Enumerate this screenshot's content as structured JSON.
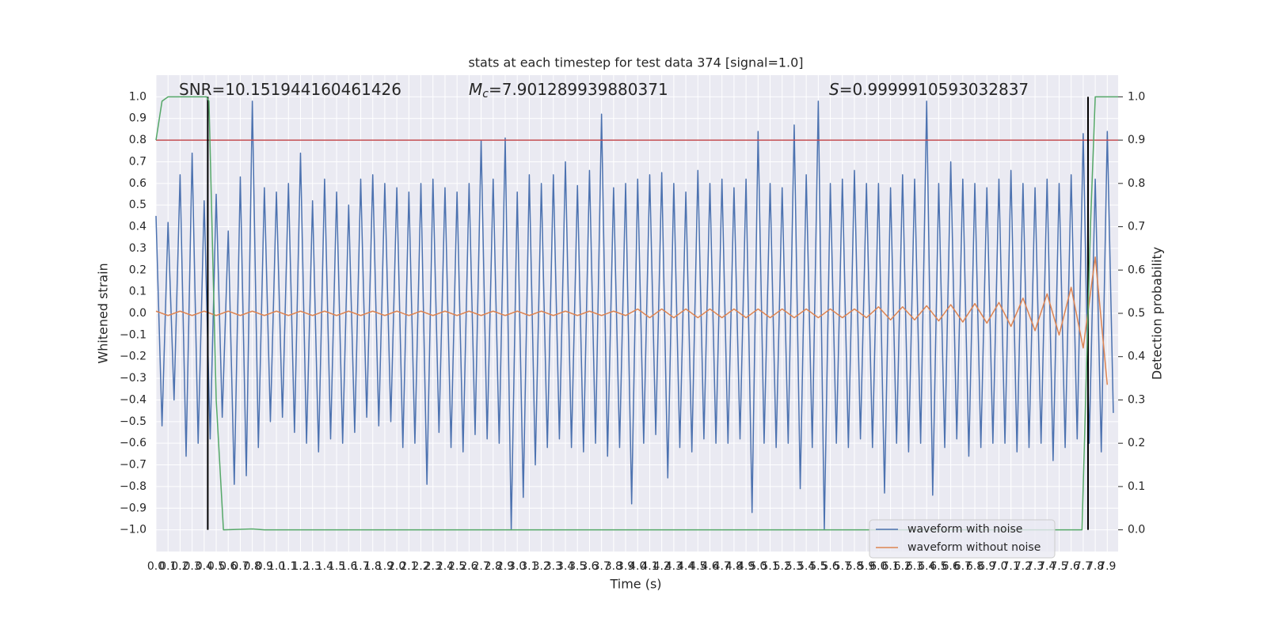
{
  "chart_data": {
    "type": "line",
    "title": "stats at each timestep for test data 374 [signal=1.0]",
    "x_label": "Time (s)",
    "y_label": "Whitened strain",
    "y2_label": "Detection probability",
    "annotations": [
      {
        "text": "SNR=10.151944160461426"
      },
      {
        "symbol": "M",
        "sub": "c",
        "text": "=7.901289939880371"
      },
      {
        "symbol": "S",
        "text": "=0.9999910593032837"
      }
    ],
    "grid": true,
    "legend": "lower right",
    "xlim": [
      0,
      7.99
    ],
    "ylim": [
      -1.1,
      1.1
    ],
    "y2lim": [
      -0.05,
      1.05
    ],
    "xticks": [
      {
        "value": 0,
        "label": "0.0"
      },
      0.1,
      0.2,
      0.3,
      0.4,
      0.5,
      0.6,
      0.7,
      0.8,
      0.9,
      {
        "value": 1,
        "label": "1.0"
      },
      1.1,
      1.2,
      1.3,
      1.4,
      1.5,
      1.6,
      1.7,
      1.8,
      1.9,
      {
        "value": 2,
        "label": "2.0"
      },
      2.1,
      2.2,
      2.3,
      2.4,
      2.5,
      2.6,
      2.7,
      2.8,
      2.9,
      {
        "value": 3,
        "label": "3.0"
      },
      3.1,
      3.2,
      3.3,
      3.4,
      3.5,
      3.6,
      3.7,
      3.8,
      3.9,
      {
        "value": 4,
        "label": "4.0"
      },
      4.1,
      4.2,
      4.3,
      4.4,
      4.5,
      4.6,
      4.7,
      4.8,
      4.9,
      {
        "value": 5,
        "label": "5.0"
      },
      5.1,
      5.2,
      5.3,
      5.4,
      5.5,
      5.6,
      5.7,
      5.8,
      5.9,
      {
        "value": 6,
        "label": "6.0"
      },
      6.1,
      6.2,
      6.3,
      6.4,
      6.5,
      6.6,
      6.7,
      6.8,
      6.9,
      {
        "value": 7,
        "label": "7.0"
      },
      7.1,
      7.2,
      7.3,
      7.4,
      7.5,
      7.6,
      7.7,
      7.8,
      7.9
    ],
    "yticks": [
      {
        "value": -1,
        "label": "−1.0"
      },
      {
        "value": -0.9,
        "label": "−0.9"
      },
      {
        "value": -0.8,
        "label": "−0.8"
      },
      {
        "value": -0.7,
        "label": "−0.7"
      },
      {
        "value": -0.6,
        "label": "−0.6"
      },
      {
        "value": -0.5,
        "label": "−0.5"
      },
      {
        "value": -0.4,
        "label": "−0.4"
      },
      {
        "value": -0.3,
        "label": "−0.3"
      },
      {
        "value": -0.2,
        "label": "−0.2"
      },
      {
        "value": -0.1,
        "label": "−0.1"
      },
      {
        "value": 0,
        "label": "0.0"
      },
      0.1,
      0.2,
      0.3,
      0.4,
      0.5,
      0.6,
      0.7,
      0.8,
      0.9,
      {
        "value": 1,
        "label": "1.0"
      }
    ],
    "y2ticks": [
      {
        "value": 0,
        "label": "0.0"
      },
      0.1,
      0.2,
      0.3,
      0.4,
      0.5,
      0.6,
      0.7,
      0.8,
      0.9,
      {
        "value": 1,
        "label": "1.0"
      }
    ],
    "series": [
      {
        "name": "waveform with noise",
        "color": "#4c72b0",
        "x": [
          0,
          0.05,
          0.1,
          0.15,
          0.2,
          0.25,
          0.3,
          0.35,
          0.4,
          0.45,
          0.5,
          0.55,
          0.6,
          0.65,
          0.7,
          0.75,
          0.8,
          0.85,
          0.9,
          0.95,
          1,
          1.05,
          1.1,
          1.15,
          1.2,
          1.25,
          1.3,
          1.35,
          1.4,
          1.45,
          1.5,
          1.55,
          1.6,
          1.65,
          1.7,
          1.75,
          1.8,
          1.85,
          1.9,
          1.95,
          2,
          2.05,
          2.1,
          2.15,
          2.2,
          2.25,
          2.3,
          2.35,
          2.4,
          2.45,
          2.5,
          2.55,
          2.6,
          2.65,
          2.7,
          2.75,
          2.8,
          2.85,
          2.9,
          2.95,
          3,
          3.05,
          3.1,
          3.15,
          3.2,
          3.25,
          3.3,
          3.35,
          3.4,
          3.45,
          3.5,
          3.55,
          3.6,
          3.65,
          3.7,
          3.75,
          3.8,
          3.85,
          3.9,
          3.95,
          4,
          4.05,
          4.1,
          4.15,
          4.2,
          4.25,
          4.3,
          4.35,
          4.4,
          4.45,
          4.5,
          4.55,
          4.6,
          4.65,
          4.7,
          4.75,
          4.8,
          4.85,
          4.9,
          4.95,
          5,
          5.05,
          5.1,
          5.15,
          5.2,
          5.25,
          5.3,
          5.35,
          5.4,
          5.45,
          5.5,
          5.55,
          5.6,
          5.65,
          5.7,
          5.75,
          5.8,
          5.85,
          5.9,
          5.95,
          6,
          6.05,
          6.1,
          6.15,
          6.2,
          6.25,
          6.3,
          6.35,
          6.4,
          6.45,
          6.5,
          6.55,
          6.6,
          6.65,
          6.7,
          6.75,
          6.8,
          6.85,
          6.9,
          6.95,
          7,
          7.05,
          7.1,
          7.15,
          7.2,
          7.25,
          7.3,
          7.35,
          7.4,
          7.45,
          7.5,
          7.55,
          7.6,
          7.65,
          7.7,
          7.75,
          7.8,
          7.85,
          7.9,
          7.95
        ],
        "values": [
          0.45,
          -0.52,
          0.42,
          -0.4,
          0.64,
          -0.66,
          0.74,
          -0.6,
          0.52,
          -0.58,
          0.55,
          -0.48,
          0.38,
          -0.79,
          0.63,
          -0.75,
          0.98,
          -0.62,
          0.58,
          -0.5,
          0.56,
          -0.48,
          0.6,
          -0.55,
          0.74,
          -0.6,
          0.52,
          -0.64,
          0.62,
          -0.58,
          0.56,
          -0.6,
          0.5,
          -0.55,
          0.62,
          -0.48,
          0.64,
          -0.52,
          0.6,
          -0.5,
          0.58,
          -0.62,
          0.56,
          -0.6,
          0.6,
          -0.79,
          0.62,
          -0.55,
          0.58,
          -0.62,
          0.56,
          -0.64,
          0.6,
          -0.56,
          0.8,
          -0.58,
          0.62,
          -0.6,
          0.81,
          -1.0,
          0.56,
          -0.85,
          0.64,
          -0.7,
          0.6,
          -0.62,
          0.64,
          -0.58,
          0.7,
          -0.62,
          0.59,
          -0.64,
          0.66,
          -0.6,
          0.92,
          -0.66,
          0.58,
          -0.62,
          0.6,
          -0.88,
          0.62,
          -0.6,
          0.64,
          -0.56,
          0.65,
          -0.76,
          0.6,
          -0.62,
          0.56,
          -0.64,
          0.66,
          -0.58,
          0.6,
          -0.6,
          0.62,
          -0.6,
          0.58,
          -0.58,
          0.62,
          -0.92,
          0.84,
          -0.6,
          0.6,
          -0.62,
          0.58,
          -0.6,
          0.87,
          -0.81,
          0.64,
          -0.62,
          0.98,
          -1.0,
          0.6,
          -0.6,
          0.62,
          -0.62,
          0.66,
          -0.58,
          0.6,
          -0.62,
          0.6,
          -0.83,
          0.58,
          -0.6,
          0.64,
          -0.64,
          0.62,
          -0.6,
          0.98,
          -0.84,
          0.6,
          -0.62,
          0.7,
          -0.58,
          0.62,
          -0.66,
          0.6,
          -0.62,
          0.58,
          -0.6,
          0.62,
          -0.6,
          0.66,
          -0.64,
          0.6,
          -0.62,
          0.58,
          -0.6,
          0.62,
          -0.68,
          0.6,
          -0.62,
          0.64,
          -0.58,
          0.83,
          -0.6,
          0.62,
          -0.64,
          0.84,
          -0.46
        ]
      },
      {
        "name": "waveform without noise",
        "color": "#dd8452",
        "x": [
          0,
          0.1,
          0.2,
          0.3,
          0.4,
          0.5,
          0.6,
          0.7,
          0.8,
          0.9,
          1,
          1.1,
          1.2,
          1.3,
          1.4,
          1.5,
          1.6,
          1.7,
          1.8,
          1.9,
          2,
          2.1,
          2.2,
          2.3,
          2.4,
          2.5,
          2.6,
          2.7,
          2.8,
          2.9,
          3,
          3.1,
          3.2,
          3.3,
          3.4,
          3.5,
          3.6,
          3.7,
          3.8,
          3.9,
          4,
          4.1,
          4.2,
          4.3,
          4.4,
          4.5,
          4.6,
          4.7,
          4.8,
          4.9,
          5,
          5.1,
          5.2,
          5.3,
          5.4,
          5.5,
          5.6,
          5.7,
          5.8,
          5.9,
          6,
          6.1,
          6.2,
          6.3,
          6.4,
          6.5,
          6.6,
          6.7,
          6.8,
          6.9,
          7,
          7.1,
          7.2,
          7.3,
          7.4,
          7.5,
          7.6,
          7.7,
          7.8,
          7.9
        ],
        "values": [
          0.01,
          -0.01,
          0.01,
          -0.01,
          0.01,
          -0.01,
          0.01,
          -0.01,
          0.01,
          -0.01,
          0.01,
          -0.01,
          0.01,
          -0.01,
          0.01,
          -0.01,
          0.01,
          -0.01,
          0.01,
          -0.01,
          0.01,
          -0.01,
          0.01,
          -0.01,
          0.01,
          -0.01,
          0.01,
          -0.01,
          0.01,
          -0.01,
          0.01,
          -0.01,
          0.01,
          -0.01,
          0.01,
          -0.01,
          0.01,
          -0.01,
          0.01,
          -0.01,
          0.02,
          -0.02,
          0.02,
          -0.02,
          0.02,
          -0.02,
          0.02,
          -0.02,
          0.02,
          -0.02,
          0.02,
          -0.02,
          0.02,
          -0.02,
          0.02,
          -0.02,
          0.02,
          -0.02,
          0.02,
          -0.02,
          0.03,
          -0.03,
          0.03,
          -0.03,
          0.035,
          -0.035,
          0.04,
          -0.04,
          0.045,
          -0.045,
          0.05,
          -0.06,
          0.07,
          -0.08,
          0.09,
          -0.1,
          0.12,
          -0.16,
          0.26,
          -0.33
        ]
      }
    ],
    "detection": {
      "color": "#55a868",
      "axis": "y2",
      "x": [
        0,
        0.05,
        0.1,
        0.42,
        0.44,
        0.5,
        0.56,
        0.8,
        0.9,
        7.69,
        7.72,
        7.76,
        7.8,
        7.99
      ],
      "values": [
        0.9,
        0.99,
        1.0,
        1.0,
        0.99,
        0.3,
        0.0,
        0.002,
        0.0,
        0.0,
        0.3,
        0.7,
        1.0,
        1.0
      ]
    },
    "threshold": {
      "axis": "y2",
      "value": 0.9,
      "color": "#c44e52"
    },
    "vlines": [
      {
        "x": 0.43,
        "ymin": -1.0,
        "ymax": 1.0,
        "color": "#000000"
      },
      {
        "x": 7.74,
        "ymin": -1.0,
        "ymax": 1.0,
        "color": "#000000"
      }
    ]
  }
}
